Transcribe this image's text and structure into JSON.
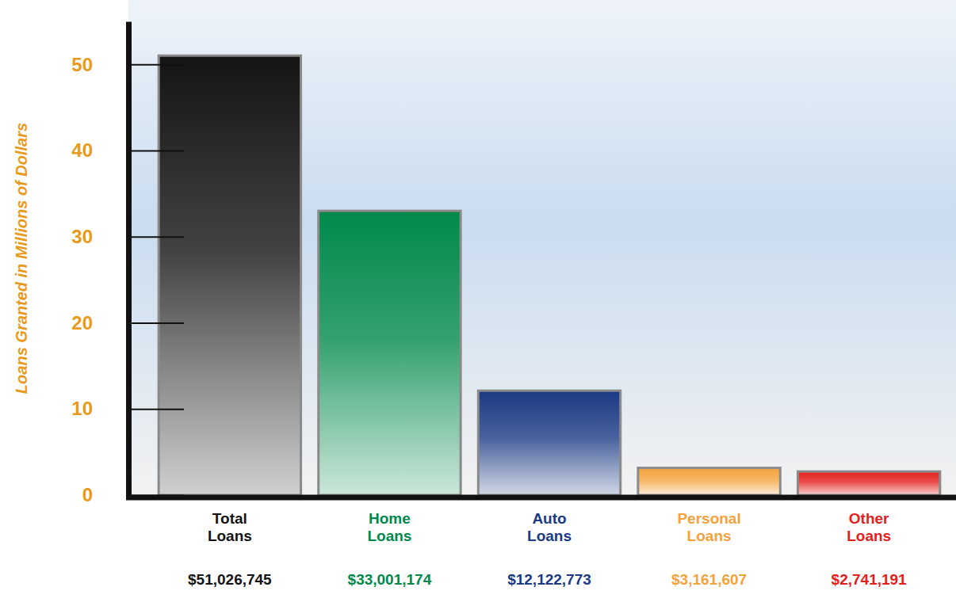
{
  "chart_data": {
    "type": "bar",
    "y_label": "Loans Granted in Millions of Dollars",
    "categories": [
      "Total Loans",
      "Home Loans",
      "Auto Loans",
      "Personal Loans",
      "Other Loans"
    ],
    "values": [
      51.026745,
      33.001174,
      12.122773,
      3.161607,
      2.741191
    ],
    "value_labels": [
      "$51,026,745",
      "$33,001,174",
      "$12,122,773",
      "$3,161,607",
      "$2,741,191"
    ],
    "colors": [
      "#141414",
      "#00894a",
      "#1b3a84",
      "#f4a23c",
      "#e3201b"
    ],
    "ylim": [
      0,
      55
    ],
    "yticks": [
      0,
      10,
      20,
      30,
      40,
      50
    ],
    "data_labels": true,
    "grid": false
  }
}
